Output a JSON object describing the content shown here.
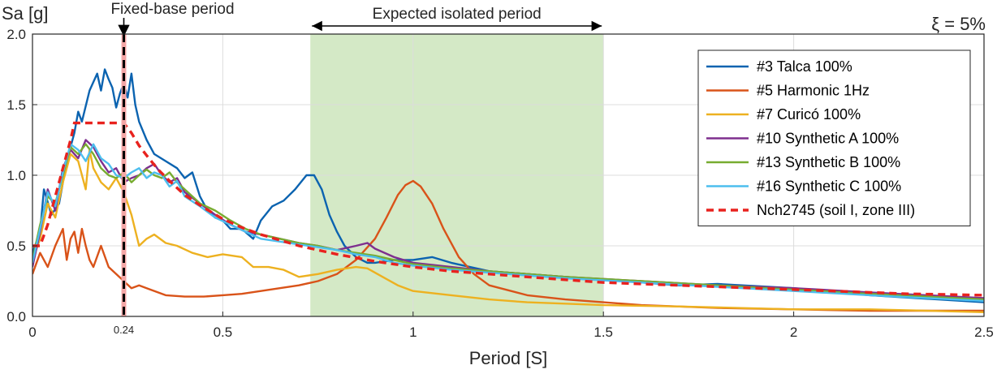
{
  "chart_data": {
    "type": "line",
    "xlabel": "Period [S]",
    "ylabel": "Sa [g]",
    "xlim": [
      0,
      2.5
    ],
    "ylim": [
      0,
      2.0
    ],
    "xticks": [
      0,
      0.5,
      1,
      1.5,
      2,
      2.5
    ],
    "xtick_labels": [
      "0",
      "0.5",
      "1",
      "1.5",
      "2",
      "2.5"
    ],
    "yticks": [
      0,
      0.5,
      1.0,
      1.5,
      2.0
    ],
    "ytick_labels": [
      "0.0",
      "0.5",
      "1.0",
      "1.5",
      "2.0"
    ],
    "grid": true,
    "legend_position": "top-right",
    "damping_label": "ξ = 5%",
    "fixed_base": {
      "period": 0.24,
      "label": "Fixed-base period",
      "tick_label": "0.24"
    },
    "isolated_band": {
      "range": [
        0.73,
        1.5
      ],
      "label": "Expected isolated period",
      "color": "#d4e9c6"
    },
    "series": [
      {
        "name": "#3 Talca 100%",
        "color": "#0b63b0",
        "dash": "",
        "x": [
          0,
          0.02,
          0.03,
          0.05,
          0.07,
          0.09,
          0.11,
          0.12,
          0.13,
          0.15,
          0.17,
          0.18,
          0.19,
          0.2,
          0.21,
          0.22,
          0.23,
          0.24,
          0.25,
          0.26,
          0.27,
          0.28,
          0.3,
          0.32,
          0.35,
          0.38,
          0.4,
          0.42,
          0.44,
          0.46,
          0.48,
          0.5,
          0.52,
          0.55,
          0.58,
          0.6,
          0.63,
          0.66,
          0.69,
          0.72,
          0.74,
          0.76,
          0.78,
          0.8,
          0.82,
          0.85,
          0.88,
          0.9,
          0.95,
          1.0,
          1.05,
          1.1,
          1.2,
          1.3,
          1.4,
          1.5,
          1.6,
          1.7,
          1.8,
          2.0,
          2.2,
          2.5
        ],
        "y": [
          0.45,
          0.6,
          0.9,
          0.72,
          0.8,
          1.1,
          1.3,
          1.45,
          1.38,
          1.6,
          1.72,
          1.6,
          1.75,
          1.68,
          1.62,
          1.48,
          1.58,
          1.65,
          1.55,
          1.72,
          1.5,
          1.38,
          1.25,
          1.15,
          1.1,
          1.05,
          0.98,
          1.02,
          0.85,
          0.75,
          0.7,
          0.68,
          0.62,
          0.62,
          0.55,
          0.68,
          0.78,
          0.82,
          0.9,
          1.0,
          1.0,
          0.9,
          0.72,
          0.6,
          0.5,
          0.42,
          0.38,
          0.38,
          0.4,
          0.4,
          0.42,
          0.38,
          0.32,
          0.3,
          0.28,
          0.26,
          0.24,
          0.22,
          0.23,
          0.2,
          0.15,
          0.1
        ]
      },
      {
        "name": "#5 Harmonic 1Hz",
        "color": "#d95319",
        "dash": "",
        "x": [
          0,
          0.02,
          0.04,
          0.06,
          0.08,
          0.09,
          0.1,
          0.11,
          0.12,
          0.13,
          0.14,
          0.15,
          0.16,
          0.18,
          0.2,
          0.22,
          0.24,
          0.26,
          0.28,
          0.3,
          0.35,
          0.4,
          0.45,
          0.5,
          0.55,
          0.6,
          0.65,
          0.7,
          0.75,
          0.8,
          0.85,
          0.9,
          0.93,
          0.96,
          0.98,
          1.0,
          1.02,
          1.05,
          1.08,
          1.12,
          1.16,
          1.2,
          1.3,
          1.4,
          1.5,
          1.6,
          1.8,
          2.0,
          2.2,
          2.5
        ],
        "y": [
          0.3,
          0.45,
          0.35,
          0.5,
          0.62,
          0.4,
          0.55,
          0.6,
          0.45,
          0.62,
          0.5,
          0.4,
          0.35,
          0.5,
          0.35,
          0.3,
          0.25,
          0.2,
          0.22,
          0.2,
          0.15,
          0.14,
          0.14,
          0.15,
          0.16,
          0.18,
          0.2,
          0.22,
          0.25,
          0.3,
          0.4,
          0.55,
          0.7,
          0.86,
          0.93,
          0.96,
          0.92,
          0.8,
          0.62,
          0.42,
          0.3,
          0.22,
          0.15,
          0.12,
          0.1,
          0.08,
          0.06,
          0.05,
          0.04,
          0.04
        ]
      },
      {
        "name": "#7 Curicó 100%",
        "color": "#edb120",
        "dash": "",
        "x": [
          0,
          0.02,
          0.04,
          0.06,
          0.08,
          0.1,
          0.12,
          0.14,
          0.15,
          0.16,
          0.18,
          0.2,
          0.22,
          0.24,
          0.26,
          0.28,
          0.3,
          0.32,
          0.35,
          0.38,
          0.42,
          0.46,
          0.5,
          0.55,
          0.58,
          0.62,
          0.66,
          0.7,
          0.75,
          0.8,
          0.85,
          0.88,
          0.92,
          0.96,
          1.0,
          1.1,
          1.2,
          1.3,
          1.5,
          1.7,
          2.0,
          2.2,
          2.5
        ],
        "y": [
          0.4,
          0.55,
          0.8,
          0.7,
          0.95,
          1.15,
          1.1,
          0.9,
          1.18,
          1.05,
          0.95,
          0.9,
          0.98,
          0.88,
          0.72,
          0.5,
          0.55,
          0.58,
          0.52,
          0.5,
          0.45,
          0.42,
          0.44,
          0.42,
          0.35,
          0.35,
          0.33,
          0.28,
          0.3,
          0.33,
          0.35,
          0.34,
          0.28,
          0.22,
          0.18,
          0.15,
          0.12,
          0.1,
          0.08,
          0.07,
          0.05,
          0.05,
          0.03
        ]
      },
      {
        "name": "#10 Synthetic A 100%",
        "color": "#7e2f8e",
        "dash": "",
        "x": [
          0,
          0.02,
          0.04,
          0.06,
          0.08,
          0.1,
          0.12,
          0.14,
          0.16,
          0.18,
          0.2,
          0.22,
          0.24,
          0.26,
          0.28,
          0.3,
          0.32,
          0.34,
          0.36,
          0.38,
          0.4,
          0.44,
          0.48,
          0.52,
          0.56,
          0.6,
          0.65,
          0.7,
          0.75,
          0.8,
          0.85,
          0.88,
          0.9,
          0.95,
          1.0,
          1.1,
          1.2,
          1.4,
          1.6,
          1.8,
          2.0,
          2.2,
          2.5
        ],
        "y": [
          0.35,
          0.6,
          0.9,
          0.75,
          1.05,
          1.18,
          1.12,
          1.25,
          1.2,
          1.1,
          1.02,
          1.05,
          0.95,
          0.98,
          1.0,
          1.05,
          1.08,
          1.0,
          0.95,
          0.98,
          0.88,
          0.8,
          0.72,
          0.65,
          0.6,
          0.58,
          0.55,
          0.52,
          0.5,
          0.47,
          0.5,
          0.52,
          0.48,
          0.42,
          0.38,
          0.35,
          0.32,
          0.28,
          0.25,
          0.22,
          0.2,
          0.17,
          0.13
        ]
      },
      {
        "name": "#13 Synthetic B 100%",
        "color": "#77ac30",
        "dash": "",
        "x": [
          0,
          0.02,
          0.04,
          0.06,
          0.08,
          0.1,
          0.12,
          0.14,
          0.16,
          0.18,
          0.2,
          0.22,
          0.24,
          0.26,
          0.28,
          0.3,
          0.32,
          0.34,
          0.36,
          0.38,
          0.4,
          0.44,
          0.48,
          0.52,
          0.56,
          0.6,
          0.65,
          0.7,
          0.75,
          0.8,
          0.85,
          0.9,
          0.95,
          1.0,
          1.1,
          1.2,
          1.4,
          1.6,
          1.8,
          2.0,
          2.2,
          2.5
        ],
        "y": [
          0.4,
          0.65,
          0.85,
          0.8,
          1.0,
          1.2,
          1.15,
          1.22,
          1.15,
          1.05,
          1.0,
          0.98,
          1.02,
          0.95,
          1.0,
          1.04,
          1.0,
          0.98,
          1.02,
          0.95,
          0.9,
          0.8,
          0.75,
          0.68,
          0.62,
          0.58,
          0.55,
          0.52,
          0.5,
          0.47,
          0.45,
          0.43,
          0.4,
          0.37,
          0.34,
          0.32,
          0.28,
          0.25,
          0.22,
          0.19,
          0.16,
          0.12
        ]
      },
      {
        "name": "#16 Synthetic C 100%",
        "color": "#4dbeee",
        "dash": "",
        "x": [
          0,
          0.02,
          0.04,
          0.06,
          0.08,
          0.1,
          0.12,
          0.14,
          0.16,
          0.18,
          0.2,
          0.22,
          0.24,
          0.26,
          0.28,
          0.3,
          0.32,
          0.34,
          0.36,
          0.38,
          0.4,
          0.44,
          0.48,
          0.52,
          0.56,
          0.6,
          0.65,
          0.7,
          0.75,
          0.8,
          0.85,
          0.9,
          0.95,
          1.0,
          1.1,
          1.2,
          1.4,
          1.6,
          1.8,
          2.0,
          2.2,
          2.5
        ],
        "y": [
          0.38,
          0.62,
          0.88,
          0.78,
          1.02,
          1.22,
          1.18,
          1.1,
          1.22,
          1.12,
          1.08,
          1.0,
          0.98,
          1.02,
          1.05,
          0.98,
          1.02,
          1.0,
          0.92,
          0.96,
          0.85,
          0.78,
          0.7,
          0.65,
          0.6,
          0.55,
          0.53,
          0.51,
          0.49,
          0.47,
          0.44,
          0.42,
          0.38,
          0.36,
          0.33,
          0.31,
          0.27,
          0.24,
          0.21,
          0.18,
          0.15,
          0.11
        ]
      },
      {
        "name": "Nch2745 (soil I, zone III)",
        "color": "#e8221e",
        "dash": "9,6",
        "x": [
          0,
          0.02,
          0.04,
          0.06,
          0.08,
          0.1,
          0.11,
          0.15,
          0.2,
          0.24,
          0.26,
          0.28,
          0.3,
          0.33,
          0.36,
          0.4,
          0.45,
          0.5,
          0.55,
          0.6,
          0.65,
          0.7,
          0.8,
          0.9,
          1.0,
          1.1,
          1.2,
          1.3,
          1.4,
          1.5,
          1.6,
          1.7,
          1.8,
          1.9,
          2.0,
          2.1,
          2.2,
          2.3,
          2.4,
          2.5
        ],
        "y": [
          0.5,
          0.5,
          0.65,
          0.85,
          1.05,
          1.25,
          1.37,
          1.37,
          1.37,
          1.37,
          1.3,
          1.21,
          1.14,
          1.04,
          0.96,
          0.86,
          0.77,
          0.69,
          0.63,
          0.58,
          0.54,
          0.5,
          0.44,
          0.39,
          0.35,
          0.32,
          0.3,
          0.28,
          0.26,
          0.24,
          0.23,
          0.22,
          0.21,
          0.2,
          0.19,
          0.18,
          0.17,
          0.16,
          0.155,
          0.15
        ]
      }
    ]
  }
}
